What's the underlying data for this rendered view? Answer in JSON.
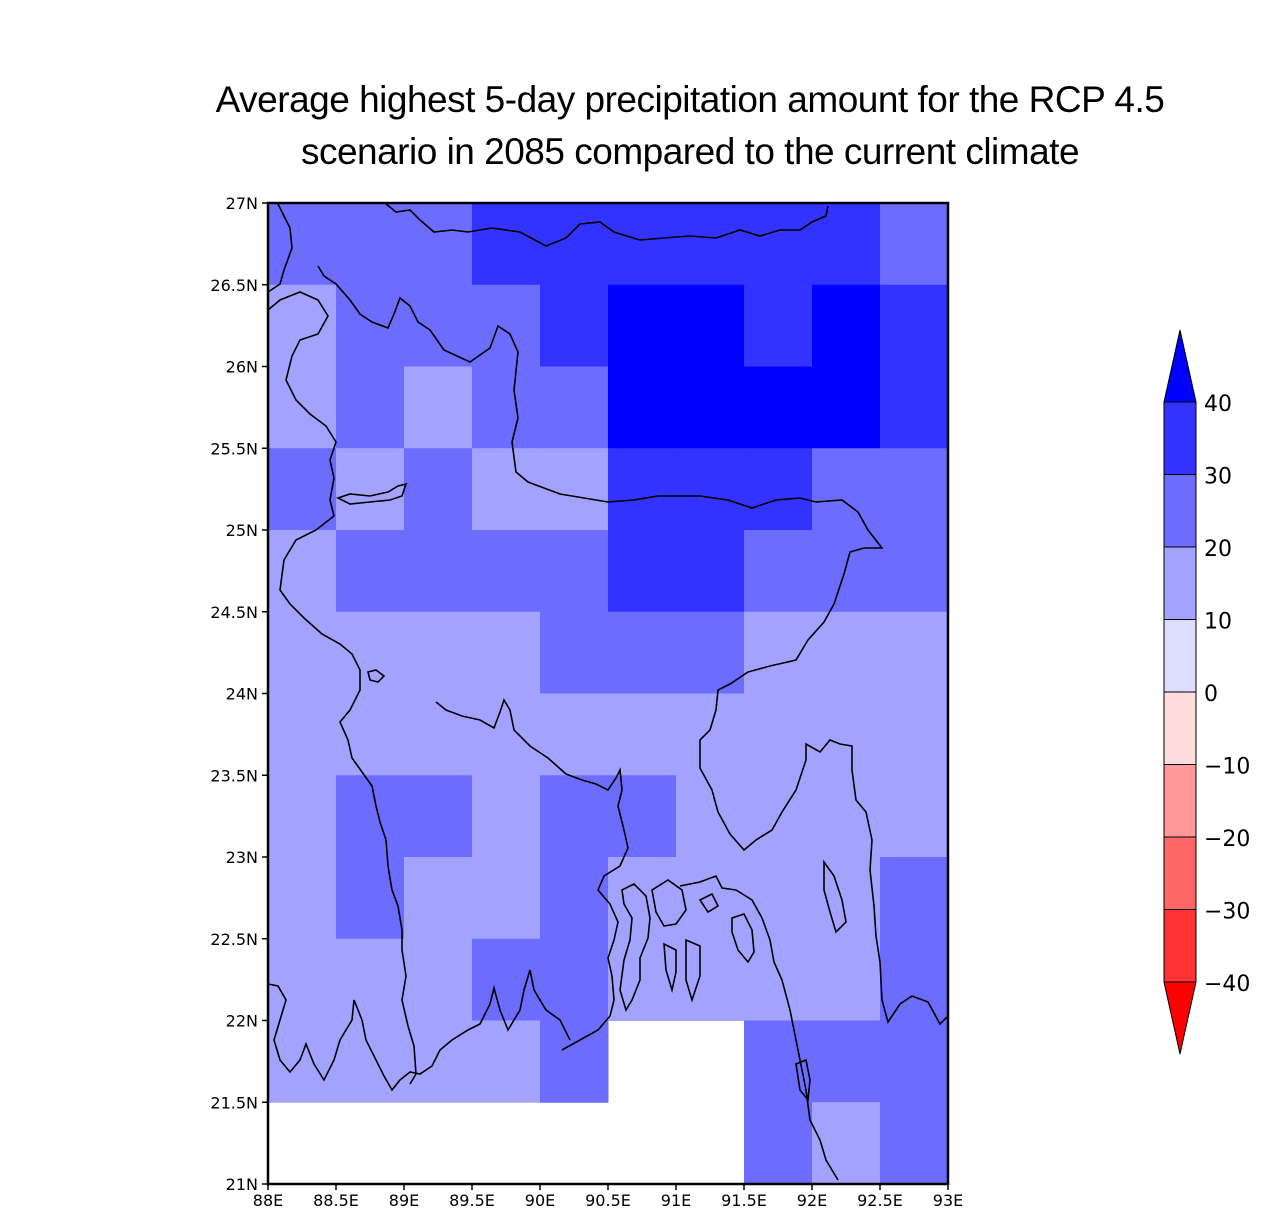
{
  "title": {
    "line1": "Average highest 5-day precipitation amount for the RCP 4.5",
    "line2": "scenario in 2085 compared to the current climate"
  },
  "chart_data": {
    "type": "heatmap",
    "xlim": [
      88,
      93
    ],
    "ylim": [
      21,
      27
    ],
    "x_ticks": [
      "88E",
      "88.5E",
      "89E",
      "89.5E",
      "90E",
      "90.5E",
      "91E",
      "91.5E",
      "92E",
      "92.5E",
      "93E"
    ],
    "y_ticks": [
      "21N",
      "21.5N",
      "22N",
      "22.5N",
      "23N",
      "23.5N",
      "24N",
      "24.5N",
      "25N",
      "25.5N",
      "26N",
      "26.5N",
      "27N"
    ],
    "cell_size_deg": 0.5,
    "colorbar": {
      "levels": [
        "-40",
        "-30",
        "-20",
        "-10",
        "0",
        "10",
        "20",
        "30",
        "40"
      ],
      "colors": [
        "#ff0000",
        "#ff3333",
        "#ff6666",
        "#ff9999",
        "#ffdddd",
        "#ddddff",
        "#a3a3ff",
        "#6c6cff",
        "#3333ff",
        "#0000ff"
      ],
      "extend": "both"
    },
    "note_grid": "grid rows north to south (26.5N-27N first), cols west to east 88E-93E, each value is class lower bound; null = no data",
    "grid": [
      [
        20,
        20,
        20,
        30,
        30,
        30,
        30,
        30,
        30,
        20
      ],
      [
        10,
        20,
        20,
        20,
        30,
        40,
        40,
        30,
        40,
        30
      ],
      [
        10,
        20,
        10,
        20,
        20,
        40,
        40,
        40,
        40,
        30
      ],
      [
        20,
        10,
        20,
        10,
        10,
        30,
        30,
        30,
        20,
        20
      ],
      [
        10,
        20,
        20,
        20,
        20,
        30,
        30,
        20,
        20,
        20
      ],
      [
        10,
        10,
        10,
        10,
        20,
        20,
        20,
        10,
        10,
        10
      ],
      [
        10,
        10,
        10,
        10,
        10,
        10,
        10,
        10,
        10,
        10
      ],
      [
        10,
        20,
        20,
        10,
        20,
        20,
        10,
        10,
        10,
        10
      ],
      [
        10,
        20,
        10,
        10,
        20,
        10,
        10,
        10,
        10,
        20
      ],
      [
        10,
        10,
        10,
        20,
        20,
        10,
        10,
        10,
        10,
        20
      ],
      [
        10,
        10,
        10,
        10,
        20,
        null,
        null,
        20,
        20,
        20
      ],
      [
        null,
        null,
        null,
        null,
        null,
        null,
        null,
        20,
        10,
        20
      ]
    ]
  }
}
